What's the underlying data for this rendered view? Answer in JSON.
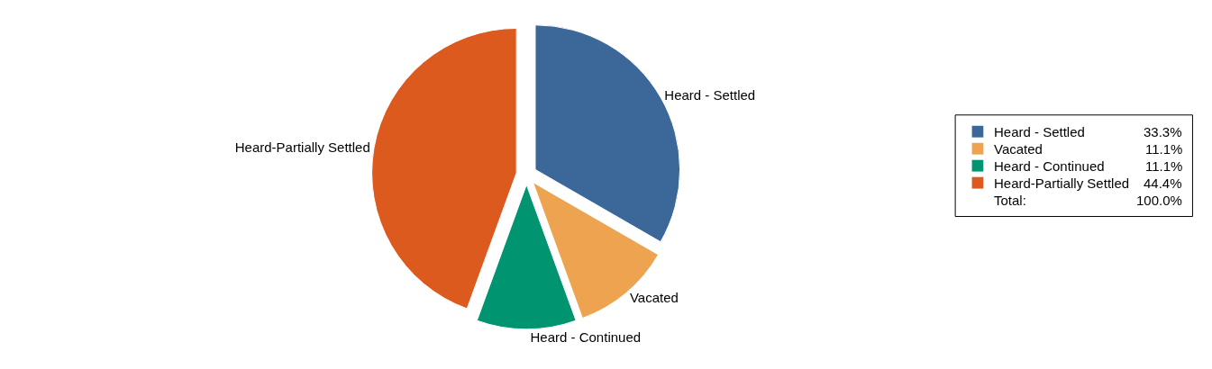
{
  "chart_data": {
    "type": "pie",
    "categories": [
      "Heard - Settled",
      "Vacated",
      "Heard - Continued",
      "Heard-Partially Settled"
    ],
    "values": [
      33.3,
      11.1,
      11.1,
      44.4
    ],
    "colors": [
      "#3c6899",
      "#eea350",
      "#009470",
      "#dd5a1f"
    ],
    "value_labels": [
      "33.3%",
      "11.1%",
      "11.1%",
      "44.4%"
    ],
    "annotations": [
      "Total:",
      "100.0%"
    ],
    "legend": "right"
  }
}
